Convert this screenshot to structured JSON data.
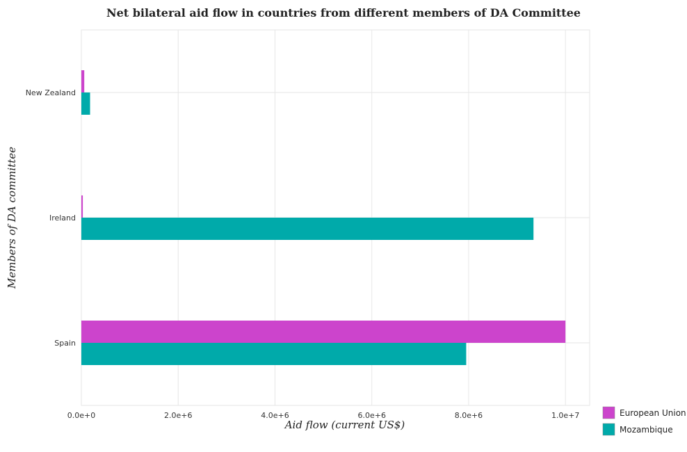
{
  "chart_data": {
    "type": "bar",
    "orientation": "horizontal",
    "title": "Net bilateral aid flow in countries from different members of DA Committee",
    "xlabel": "Aid flow (current US$)",
    "ylabel": "Members of DA committee",
    "categories": [
      "New Zealand",
      "Ireland",
      "Spain"
    ],
    "series": [
      {
        "name": "European Union",
        "color": "#cc44cc",
        "values": [
          60000,
          30000,
          10000000
        ]
      },
      {
        "name": "Mozambique",
        "color": "#00aaaa",
        "values": [
          180000,
          9340000,
          7950000
        ]
      }
    ],
    "xlim": [
      0,
      10500000
    ],
    "xticks": [
      0,
      2000000,
      4000000,
      6000000,
      8000000,
      10000000
    ],
    "xtick_labels": [
      "0.0e+0",
      "2.0e+6",
      "4.0e+6",
      "6.0e+6",
      "8.0e+6",
      "1.0e+7"
    ],
    "grid": true,
    "legend_position": "bottom-right"
  }
}
